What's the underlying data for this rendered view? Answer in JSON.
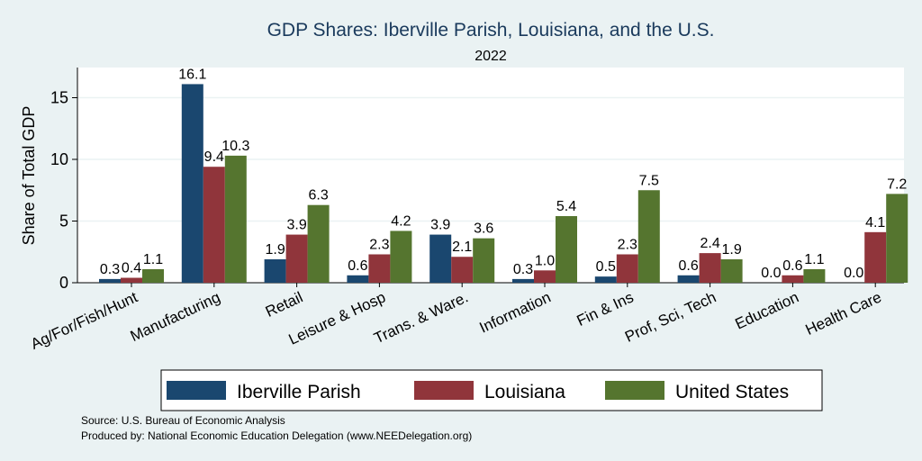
{
  "chart_data": {
    "type": "bar",
    "title": "GDP Shares: Iberville Parish, Louisiana, and the U.S.",
    "subtitle": "2022",
    "ylabel": "Share of Total GDP",
    "xlabel": "",
    "ylim": [
      0,
      17.5
    ],
    "yticks": [
      0,
      5,
      10,
      15
    ],
    "grid": true,
    "legend_position": "bottom",
    "categories": [
      "Ag/For/Fish/Hunt",
      "Manufacturing",
      "Retail",
      "Leisure & Hosp",
      "Trans. & Ware.",
      "Information",
      "Fin & Ins",
      "Prof, Sci, Tech",
      "Education",
      "Health Care"
    ],
    "series": [
      {
        "name": "Iberville Parish",
        "color": "#1a476f",
        "values": [
          0.3,
          16.1,
          1.9,
          0.6,
          3.9,
          0.3,
          0.5,
          0.6,
          0.0,
          0.0
        ]
      },
      {
        "name": "Louisiana",
        "color": "#90353b",
        "values": [
          0.4,
          9.4,
          3.9,
          2.3,
          2.1,
          1.0,
          2.3,
          2.4,
          0.6,
          4.1
        ]
      },
      {
        "name": "United States",
        "color": "#55752f",
        "values": [
          1.1,
          10.3,
          6.3,
          4.2,
          3.6,
          5.4,
          7.5,
          1.9,
          1.1,
          7.2
        ]
      }
    ]
  },
  "source_lines": [
    "Source: U.S. Bureau of Economic Analysis",
    "Produced by: National Economic Education Delegation (www.NEEDelegation.org)"
  ]
}
